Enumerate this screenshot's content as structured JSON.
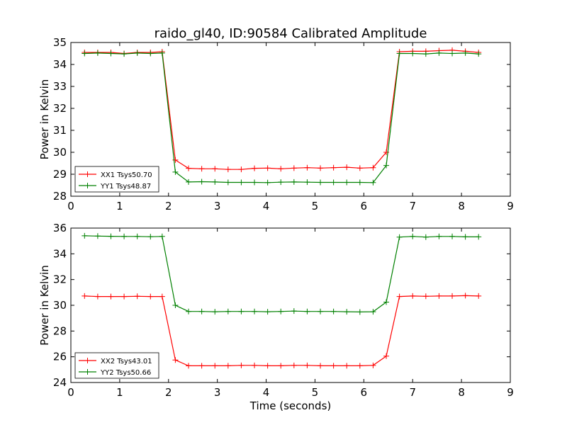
{
  "chart_data": {
    "title": "raido_gl40, ID:90584 Calibrated Amplitude",
    "xlabel": "Time (seconds)",
    "panels": [
      {
        "type": "line",
        "ylabel": "Power in Kelvin",
        "xlim": [
          0,
          9
        ],
        "ylim": [
          28,
          35
        ],
        "xticks": [
          0,
          1,
          2,
          3,
          4,
          5,
          6,
          7,
          8,
          9
        ],
        "yticks": [
          28,
          29,
          30,
          31,
          32,
          33,
          34,
          35
        ],
        "legend_position": "lower-left",
        "x": [
          0.28,
          0.55,
          0.82,
          1.09,
          1.36,
          1.63,
          1.87,
          2.14,
          2.41,
          2.68,
          2.95,
          3.22,
          3.49,
          3.76,
          4.03,
          4.3,
          4.57,
          4.84,
          5.11,
          5.38,
          5.65,
          5.92,
          6.19,
          6.46,
          6.73,
          7.0,
          7.27,
          7.54,
          7.81,
          8.08,
          8.35
        ],
        "series": [
          {
            "name": "XX1 Tsys50.70",
            "color": "#ff0000",
            "values": [
              34.55,
              34.55,
              34.55,
              34.5,
              34.55,
              34.55,
              34.58,
              29.65,
              29.27,
              29.25,
              29.25,
              29.22,
              29.22,
              29.27,
              29.28,
              29.25,
              29.28,
              29.3,
              29.28,
              29.3,
              29.32,
              29.28,
              29.3,
              30.0,
              34.58,
              34.6,
              34.6,
              34.63,
              34.65,
              34.6,
              34.55
            ]
          },
          {
            "name": "YY1 Tsys48.87",
            "color": "#008000",
            "values": [
              34.5,
              34.52,
              34.5,
              34.48,
              34.52,
              34.5,
              34.52,
              29.1,
              28.65,
              28.66,
              28.65,
              28.63,
              28.63,
              28.63,
              28.62,
              28.64,
              28.65,
              28.64,
              28.63,
              28.63,
              28.63,
              28.63,
              28.62,
              29.4,
              34.5,
              34.5,
              34.48,
              34.52,
              34.5,
              34.52,
              34.48
            ]
          }
        ]
      },
      {
        "type": "line",
        "ylabel": "Power in Kelvin",
        "xlim": [
          0,
          9
        ],
        "ylim": [
          24,
          36
        ],
        "xticks": [
          0,
          1,
          2,
          3,
          4,
          5,
          6,
          7,
          8,
          9
        ],
        "yticks": [
          24,
          26,
          28,
          30,
          32,
          34,
          36
        ],
        "legend_position": "lower-left",
        "x": [
          0.28,
          0.55,
          0.82,
          1.09,
          1.36,
          1.63,
          1.87,
          2.14,
          2.41,
          2.68,
          2.95,
          3.22,
          3.49,
          3.76,
          4.03,
          4.3,
          4.57,
          4.84,
          5.11,
          5.38,
          5.65,
          5.92,
          6.19,
          6.46,
          6.73,
          7.0,
          7.27,
          7.54,
          7.81,
          8.08,
          8.35
        ],
        "series": [
          {
            "name": "XX2 Tsys43.01",
            "color": "#ff0000",
            "values": [
              30.72,
              30.68,
              30.68,
              30.68,
              30.7,
              30.68,
              30.68,
              25.75,
              25.3,
              25.3,
              25.3,
              25.3,
              25.33,
              25.33,
              25.3,
              25.3,
              25.33,
              25.33,
              25.3,
              25.3,
              25.3,
              25.3,
              25.33,
              26.05,
              30.68,
              30.72,
              30.7,
              30.72,
              30.72,
              30.75,
              30.72
            ]
          },
          {
            "name": "YY2 Tsys50.66",
            "color": "#008000",
            "values": [
              35.4,
              35.38,
              35.36,
              35.35,
              35.35,
              35.33,
              35.35,
              30.0,
              29.52,
              29.52,
              29.5,
              29.52,
              29.52,
              29.52,
              29.5,
              29.52,
              29.55,
              29.52,
              29.52,
              29.52,
              29.5,
              29.48,
              29.5,
              30.25,
              35.3,
              35.35,
              35.3,
              35.35,
              35.35,
              35.32,
              35.32
            ]
          }
        ]
      }
    ]
  }
}
